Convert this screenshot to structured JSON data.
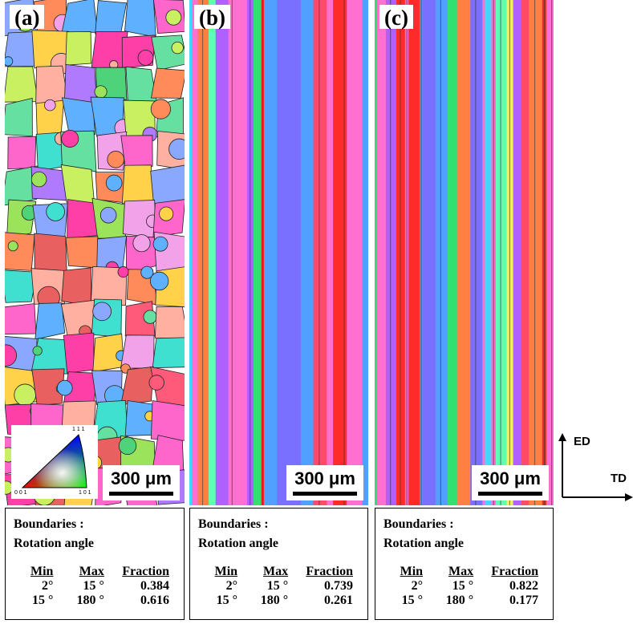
{
  "panels": [
    {
      "label": "(a)",
      "scale": "300 μm",
      "table": {
        "heading1": "Boundaries :",
        "heading2": "Rotation angle",
        "cols": [
          "Min",
          "Max",
          "Fraction"
        ],
        "rows": [
          [
            "2°",
            "15 °",
            "0.384"
          ],
          [
            "15 °",
            "180 °",
            "0.616"
          ]
        ]
      }
    },
    {
      "label": "(b)",
      "scale": "300 μm",
      "table": {
        "heading1": "Boundaries :",
        "heading2": "Rotation angle",
        "cols": [
          "Min",
          "Max",
          "Fraction"
        ],
        "rows": [
          [
            "2°",
            "15 °",
            "0.739"
          ],
          [
            "15 °",
            "180 °",
            "0.261"
          ]
        ]
      }
    },
    {
      "label": "(c)",
      "scale": "300 μm",
      "table": {
        "heading1": "Boundaries :",
        "heading2": "Rotation angle",
        "cols": [
          "Min",
          "Max",
          "Fraction"
        ],
        "rows": [
          [
            "2°",
            "15 °",
            "0.822"
          ],
          [
            "15 °",
            "180 °",
            "0.177"
          ]
        ]
      }
    }
  ],
  "ipf_legend": {
    "top": "1 1 1",
    "left": "0 0 1",
    "right": "1 0 1"
  },
  "axes": {
    "vertical": "ED",
    "horizontal": "TD"
  }
}
